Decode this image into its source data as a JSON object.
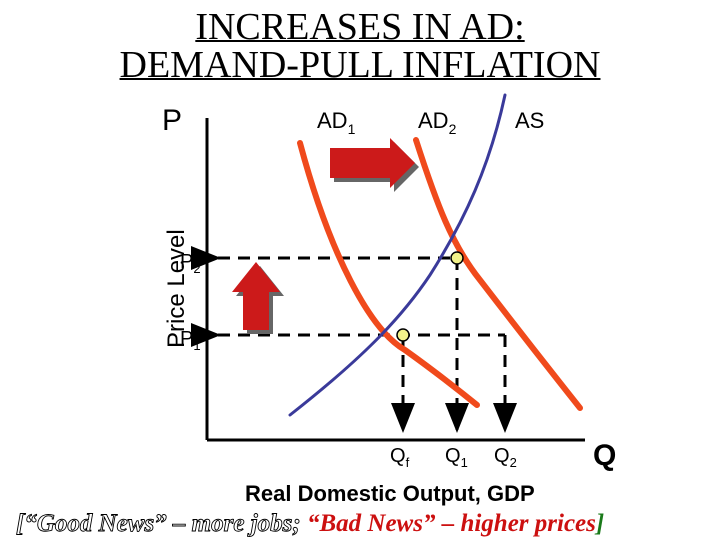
{
  "slide": {
    "title_line1": "INCREASES IN AD:",
    "title_line2": "DEMAND-PULL INFLATION"
  },
  "axes": {
    "y_letter": "P",
    "y_label": "Price Level",
    "x_letter": "Q",
    "x_label": "Real Domestic Output, GDP"
  },
  "curves": {
    "ad1": {
      "name": "AD",
      "sub": "1",
      "color": "#f04a1c"
    },
    "ad2": {
      "name": "AD",
      "sub": "2",
      "color": "#f04a1c"
    },
    "as": {
      "name": "AS",
      "color": "#3a3a9a"
    }
  },
  "levels": {
    "p2": {
      "name": "P",
      "sub": "2"
    },
    "p1": {
      "name": "P",
      "sub": "1"
    },
    "qf": {
      "name": "Q",
      "sub": "f"
    },
    "q1": {
      "name": "Q",
      "sub": "1"
    },
    "q2": {
      "name": "Q",
      "sub": "2"
    }
  },
  "arrows": {
    "shift_right": {
      "color": "#cc1a1a"
    },
    "price_up": {
      "color": "#cc1a1a"
    }
  },
  "equilibrium_point_color": "#f2f28a",
  "footer": {
    "open_bracket": "[",
    "good_news": "“Good News” – more jobs",
    "separator": ";",
    "bad_news": "“Bad News” – higher prices",
    "close_bracket": "]",
    "good_color": "#ffffff",
    "bad_color": "#cc1010",
    "bracket_color": "#1a7a1a"
  }
}
